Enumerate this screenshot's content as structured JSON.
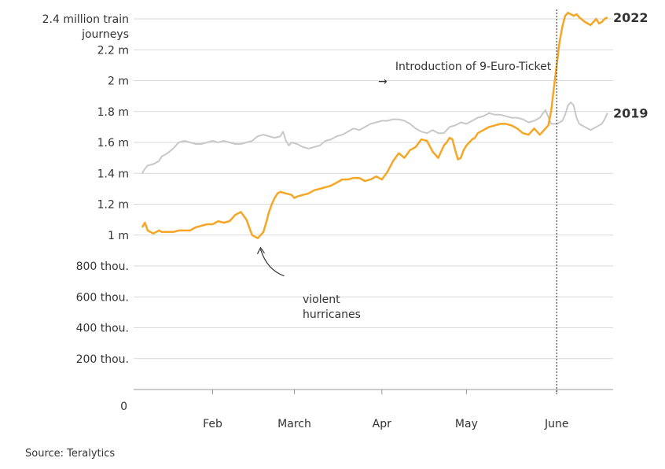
{
  "chart_data": {
    "type": "line",
    "title": "",
    "xlabel": "",
    "ylabel": "million train journeys",
    "ylim": [
      0,
      2.4
    ],
    "xlim": [
      0,
      170
    ],
    "y_ticks": [
      {
        "value": 0,
        "label": "0"
      },
      {
        "value": 0.2,
        "label": "200 thou."
      },
      {
        "value": 0.4,
        "label": "400 thou."
      },
      {
        "value": 0.6,
        "label": "600 thou."
      },
      {
        "value": 0.8,
        "label": "800 thou."
      },
      {
        "value": 1.0,
        "label": "1 m"
      },
      {
        "value": 1.2,
        "label": "1.2 m"
      },
      {
        "value": 1.4,
        "label": "1.4 m"
      },
      {
        "value": 1.6,
        "label": "1.6 m"
      },
      {
        "value": 1.8,
        "label": "1.8 m"
      },
      {
        "value": 2.0,
        "label": "2 m"
      },
      {
        "value": 2.2,
        "label": "2.2 m"
      },
      {
        "value": 2.4,
        "label": "2.4 million train|journeys"
      }
    ],
    "x_ticks": [
      {
        "value": 28,
        "label": "Feb"
      },
      {
        "value": 57,
        "label": "March"
      },
      {
        "value": 88,
        "label": "Apr"
      },
      {
        "value": 118,
        "label": "May"
      },
      {
        "value": 150,
        "label": "June"
      }
    ],
    "series": [
      {
        "name": "2022",
        "color": "#f6a623",
        "x": [
          3,
          4,
          5,
          7,
          9,
          10,
          12,
          14,
          16,
          18,
          20,
          22,
          24,
          26,
          28,
          30,
          32,
          34,
          36,
          38,
          40,
          42,
          44,
          46,
          47,
          48,
          49,
          50,
          51,
          52,
          54,
          56,
          57,
          58,
          60,
          62,
          64,
          66,
          68,
          70,
          72,
          74,
          76,
          78,
          80,
          82,
          84,
          86,
          88,
          90,
          92,
          94,
          96,
          98,
          100,
          102,
          104,
          106,
          108,
          110,
          111,
          112,
          113,
          114,
          115,
          116,
          117,
          118,
          119,
          120,
          121,
          122,
          124,
          126,
          128,
          130,
          132,
          134,
          136,
          138,
          140,
          142,
          144,
          145,
          146,
          147,
          148,
          149,
          150,
          151,
          152,
          153,
          154,
          155,
          156,
          157,
          158,
          160,
          162,
          163,
          164,
          165,
          166,
          167,
          168
        ],
        "y": [
          1.05,
          1.08,
          1.03,
          1.01,
          1.03,
          1.02,
          1.02,
          1.02,
          1.03,
          1.03,
          1.03,
          1.05,
          1.06,
          1.07,
          1.07,
          1.09,
          1.08,
          1.09,
          1.13,
          1.15,
          1.1,
          1.0,
          0.98,
          1.02,
          1.08,
          1.15,
          1.2,
          1.24,
          1.27,
          1.28,
          1.27,
          1.26,
          1.24,
          1.25,
          1.26,
          1.27,
          1.29,
          1.3,
          1.31,
          1.32,
          1.34,
          1.36,
          1.36,
          1.37,
          1.37,
          1.35,
          1.36,
          1.38,
          1.36,
          1.41,
          1.48,
          1.53,
          1.5,
          1.55,
          1.57,
          1.62,
          1.61,
          1.54,
          1.5,
          1.58,
          1.6,
          1.63,
          1.62,
          1.55,
          1.49,
          1.5,
          1.55,
          1.58,
          1.6,
          1.62,
          1.63,
          1.66,
          1.68,
          1.7,
          1.71,
          1.72,
          1.72,
          1.71,
          1.69,
          1.66,
          1.65,
          1.69,
          1.65,
          1.67,
          1.69,
          1.71,
          1.8,
          1.95,
          2.1,
          2.25,
          2.35,
          2.42,
          2.44,
          2.43,
          2.42,
          2.43,
          2.41,
          2.38,
          2.36,
          2.38,
          2.4,
          2.37,
          2.38,
          2.4,
          2.41
        ]
      },
      {
        "name": "2019",
        "color": "#c8c8c8",
        "x": [
          3,
          4,
          5,
          7,
          9,
          10,
          12,
          14,
          16,
          18,
          20,
          22,
          24,
          26,
          28,
          30,
          32,
          34,
          36,
          38,
          40,
          42,
          44,
          46,
          48,
          50,
          52,
          53,
          54,
          55,
          56,
          58,
          60,
          62,
          64,
          66,
          68,
          70,
          72,
          74,
          76,
          78,
          80,
          82,
          84,
          86,
          88,
          90,
          92,
          94,
          96,
          98,
          100,
          102,
          104,
          106,
          108,
          110,
          112,
          114,
          116,
          118,
          120,
          122,
          124,
          126,
          128,
          130,
          132,
          134,
          136,
          138,
          140,
          142,
          144,
          146,
          148,
          150,
          152,
          153,
          154,
          155,
          156,
          157,
          158,
          160,
          162,
          164,
          166,
          167,
          168
        ],
        "y": [
          1.4,
          1.43,
          1.45,
          1.46,
          1.48,
          1.51,
          1.53,
          1.56,
          1.6,
          1.61,
          1.6,
          1.59,
          1.59,
          1.6,
          1.61,
          1.6,
          1.61,
          1.6,
          1.59,
          1.59,
          1.6,
          1.61,
          1.64,
          1.65,
          1.64,
          1.63,
          1.64,
          1.67,
          1.61,
          1.58,
          1.6,
          1.59,
          1.57,
          1.56,
          1.57,
          1.58,
          1.61,
          1.62,
          1.64,
          1.65,
          1.67,
          1.69,
          1.68,
          1.7,
          1.72,
          1.73,
          1.74,
          1.74,
          1.75,
          1.75,
          1.74,
          1.72,
          1.69,
          1.67,
          1.66,
          1.68,
          1.66,
          1.66,
          1.7,
          1.71,
          1.73,
          1.72,
          1.74,
          1.76,
          1.77,
          1.79,
          1.78,
          1.78,
          1.77,
          1.76,
          1.76,
          1.75,
          1.73,
          1.74,
          1.76,
          1.81,
          1.72,
          1.72,
          1.74,
          1.78,
          1.84,
          1.86,
          1.84,
          1.76,
          1.72,
          1.7,
          1.68,
          1.7,
          1.72,
          1.75,
          1.79
        ]
      }
    ],
    "annotations": [
      {
        "id": "nine-euro",
        "text": "Introduction of 9-Euro-Ticket",
        "arrow": "→",
        "x": 150
      },
      {
        "id": "hurricanes",
        "text": "violent|hurricanes",
        "x": 45,
        "y": 0.98
      }
    ],
    "grid": true,
    "legend": "series labels at right end of lines",
    "source": "Source: Teralytics"
  }
}
